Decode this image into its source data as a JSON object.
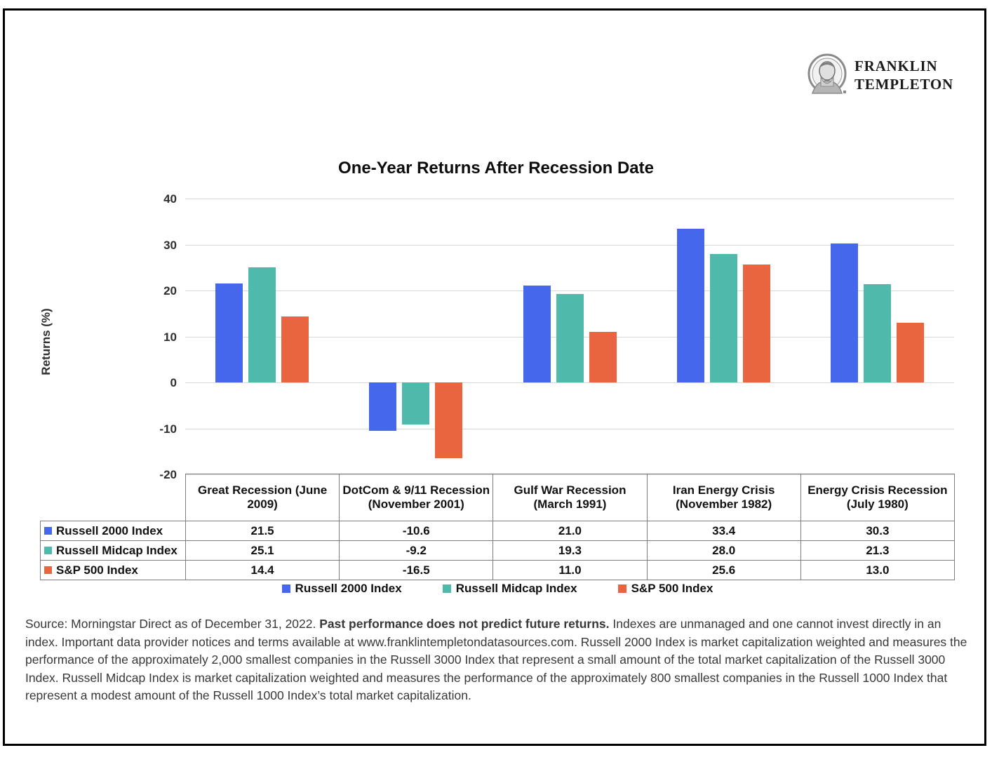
{
  "logo": {
    "brand_line1": "FRANKLIN",
    "brand_line2": "TEMPLETON"
  },
  "chart_data": {
    "type": "bar",
    "title": "One-Year Returns After Recession Date",
    "xlabel": "",
    "ylabel": "Returns (%)",
    "ylim": [
      -20,
      40
    ],
    "yticks": [
      40,
      30,
      20,
      10,
      0,
      -10,
      -20
    ],
    "grid": true,
    "legend_position": "bottom",
    "categories": [
      "Great Recession (June 2009)",
      "DotCom & 9/11 Recession (November 2001)",
      "Gulf War Recession (March 1991)",
      "Iran Energy Crisis (November 1982)",
      "Energy Crisis Recession (July 1980)"
    ],
    "series": [
      {
        "name": "Russell 2000 Index",
        "color": "#4467EB",
        "values": [
          21.5,
          -10.6,
          21.0,
          33.4,
          30.3
        ]
      },
      {
        "name": "Russell Midcap Index",
        "color": "#4FB9AB",
        "values": [
          25.1,
          -9.2,
          19.3,
          28.0,
          21.3
        ]
      },
      {
        "name": "S&P 500 Index",
        "color": "#E8653F",
        "values": [
          14.4,
          -16.5,
          11.0,
          25.6,
          13.0
        ]
      }
    ]
  },
  "footer": {
    "text_before_bold": "Source: Morningstar Direct as of December 31, 2022. ",
    "bold_text": "Past performance does not predict future returns.",
    "text_after_bold": " Indexes are unmanaged and one cannot invest directly in an index. Important data provider notices and terms available at www.franklintempletondatasources.com. Russell 2000 Index is market capitalization weighted and measures the performance of the approximately 2,000 smallest companies in the Russell 3000 Index that represent a small amount of the total market capitalization of the Russell 3000 Index. Russell Midcap Index is market capitalization weighted and measures the performance of the approximately 800 smallest companies in the Russell 1000 Index that represent a modest amount of the Russell 1000 Index’s total market capitalization."
  }
}
